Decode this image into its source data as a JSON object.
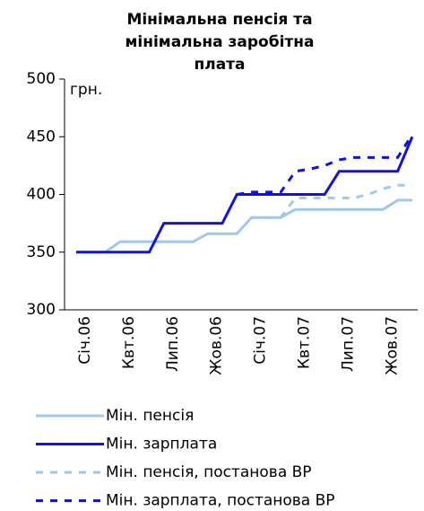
{
  "chart_data": {
    "type": "line",
    "title": [
      "Мінімальна пенсія та",
      "мінімальна заробітна",
      "плата"
    ],
    "y_label": "грн.",
    "categories": [
      "Січ.06",
      null,
      null,
      "Квт.06",
      null,
      null,
      "Лип.06",
      null,
      null,
      "Жов.06",
      null,
      null,
      "Січ.07",
      null,
      null,
      "Квт.07",
      null,
      null,
      "Лип.07",
      null,
      null,
      "Жов.07",
      null,
      null
    ],
    "ylim": [
      300,
      500
    ],
    "yticks": [
      300,
      350,
      400,
      450,
      500
    ],
    "grid": false,
    "series": [
      {
        "name": "Мін. пенсія",
        "color": "#9cc8f2",
        "dash": false,
        "values": [
          350,
          350,
          350,
          359,
          359,
          359,
          359,
          359,
          359,
          366,
          366,
          366,
          380,
          380,
          380,
          387,
          387,
          387,
          387,
          387,
          387,
          387,
          395,
          395
        ]
      },
      {
        "name": "Мін. зарплата",
        "color": "#1010e8",
        "dash": false,
        "values": [
          350,
          350,
          350,
          350,
          350,
          350,
          375,
          375,
          375,
          375,
          375,
          400,
          400,
          400,
          400,
          400,
          400,
          400,
          420,
          420,
          420,
          420,
          420,
          450
        ]
      },
      {
        "name": "Мін. пенсія, постанова ВР",
        "color": "#9cc8f2",
        "dash": true,
        "values": [
          null,
          null,
          null,
          null,
          null,
          null,
          null,
          null,
          null,
          null,
          null,
          null,
          380,
          380,
          380,
          397,
          397,
          397,
          397,
          397,
          400,
          405,
          408,
          408
        ]
      },
      {
        "name": "Мін. зарплата, постанова ВР",
        "color": "#1010e8",
        "dash": true,
        "values": [
          null,
          null,
          null,
          null,
          null,
          null,
          null,
          null,
          null,
          null,
          null,
          400,
          402,
          402,
          402,
          420,
          422,
          425,
          430,
          432,
          432,
          432,
          432,
          452
        ]
      }
    ]
  }
}
